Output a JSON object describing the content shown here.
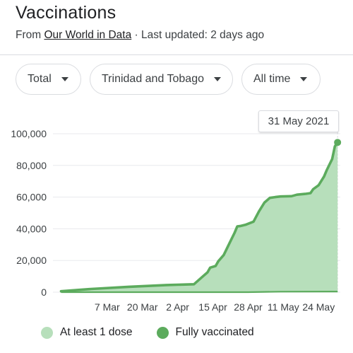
{
  "header": {
    "title": "Vaccinations",
    "source_prefix": "From ",
    "source_link": "Our World in Data",
    "updated": " · Last updated: 2 days ago"
  },
  "filters": {
    "metric": "Total",
    "country": "Trinidad and Tobago",
    "range": "All time"
  },
  "tooltip": {
    "date": "31 May 2021"
  },
  "legend": {
    "dose1": "At least 1 dose",
    "full": "Fully vaccinated"
  },
  "colors": {
    "dose1_fill": "#b7dfbb",
    "dose1_line": "#5cab5d",
    "full_line": "#5cab5d",
    "grid": "#e8eaed",
    "axis_text": "#3c4043"
  },
  "chart_data": {
    "type": "area",
    "xlabel": "",
    "ylabel": "",
    "ylim": [
      0,
      100000
    ],
    "y_ticks": [
      0,
      20000,
      40000,
      60000,
      80000,
      100000
    ],
    "y_tick_labels": [
      "0",
      "20,000",
      "40,000",
      "60,000",
      "80,000",
      "100,000"
    ],
    "x_range": [
      "2021-02-15",
      "2021-06-01"
    ],
    "x_ticks": [
      "2021-03-07",
      "2021-03-20",
      "2021-04-02",
      "2021-04-15",
      "2021-04-28",
      "2021-05-11",
      "2021-05-24"
    ],
    "x_tick_labels": [
      "7 Mar",
      "20 Mar",
      "2 Apr",
      "15 Apr",
      "28 Apr",
      "11 May",
      "24 May"
    ],
    "grid": true,
    "legend_position": "bottom",
    "series": [
      {
        "name": "At least 1 dose",
        "x": [
          "2021-02-18",
          "2021-03-01",
          "2021-03-15",
          "2021-03-29",
          "2021-04-08",
          "2021-04-11",
          "2021-04-13",
          "2021-04-14",
          "2021-04-16",
          "2021-04-17",
          "2021-04-19",
          "2021-04-21",
          "2021-04-23",
          "2021-04-24",
          "2021-04-25",
          "2021-04-27",
          "2021-04-30",
          "2021-05-02",
          "2021-05-04",
          "2021-05-05",
          "2021-05-06",
          "2021-05-08",
          "2021-05-10",
          "2021-05-14",
          "2021-05-16",
          "2021-05-19",
          "2021-05-21",
          "2021-05-22",
          "2021-05-24",
          "2021-05-26",
          "2021-05-27",
          "2021-05-29",
          "2021-05-30",
          "2021-05-31"
        ],
        "values": [
          600,
          2000,
          3400,
          4500,
          5000,
          9500,
          12500,
          15500,
          16500,
          19500,
          23500,
          30500,
          37500,
          41500,
          41700,
          42500,
          44500,
          51000,
          56500,
          58000,
          59500,
          60000,
          60400,
          60600,
          61500,
          62000,
          62500,
          65000,
          67500,
          73000,
          77000,
          84000,
          92000,
          94500
        ]
      },
      {
        "name": "Fully vaccinated",
        "x": [
          "2021-02-18",
          "2021-04-14",
          "2021-04-28",
          "2021-05-10",
          "2021-05-31"
        ],
        "values": [
          0,
          0,
          0,
          300,
          400
        ]
      }
    ]
  }
}
